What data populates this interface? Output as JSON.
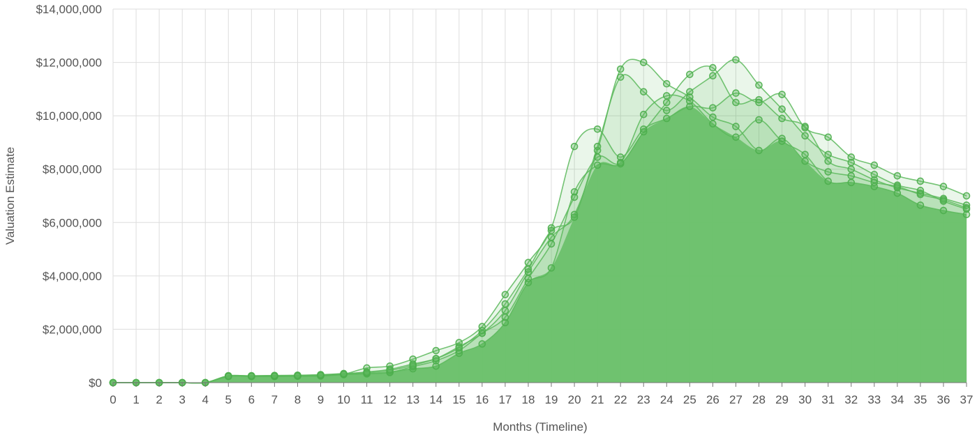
{
  "chart_data": {
    "type": "area",
    "title": "",
    "xlabel": "Months (Timeline)",
    "ylabel": "Valuation Estimate",
    "xlim": [
      0,
      37
    ],
    "ylim": [
      0,
      14000000
    ],
    "x_ticks": [
      "0",
      "1",
      "2",
      "3",
      "4",
      "5",
      "6",
      "7",
      "8",
      "9",
      "10",
      "11",
      "12",
      "13",
      "14",
      "15",
      "16",
      "17",
      "18",
      "19",
      "20",
      "21",
      "22",
      "23",
      "24",
      "25",
      "26",
      "27",
      "28",
      "29",
      "30",
      "31",
      "32",
      "33",
      "34",
      "35",
      "36",
      "37"
    ],
    "y_ticks": [
      {
        "value": 0,
        "label": "$0"
      },
      {
        "value": 2000000,
        "label": "$2,000,000"
      },
      {
        "value": 4000000,
        "label": "$4,000,000"
      },
      {
        "value": 6000000,
        "label": "$6,000,000"
      },
      {
        "value": 8000000,
        "label": "$8,000,000"
      },
      {
        "value": 10000000,
        "label": "$10,000,000"
      },
      {
        "value": 12000000,
        "label": "$12,000,000"
      },
      {
        "value": 14000000,
        "label": "$14,000,000"
      }
    ],
    "grid": true,
    "legend": "none",
    "colors": {
      "line": "#5cb85c",
      "marker": "#4cae4c",
      "fill_main": "#6cc16c",
      "fill_band": "#5cb85c",
      "grid": "#dddddd",
      "text": "#555555"
    },
    "series": [
      {
        "values": [
          0,
          0,
          0,
          0,
          0,
          260000,
          240000,
          230000,
          250000,
          270000,
          320000,
          350000,
          400000,
          520000,
          620000,
          1100000,
          1450000,
          2250000,
          3750000,
          4300000,
          7150000,
          8150000,
          8200000,
          9400000,
          10500000,
          11550000,
          11800000,
          10500000,
          10600000,
          9900000,
          9600000,
          8300000,
          8000000,
          7600000,
          7300000,
          7100000,
          6900000,
          6650000
        ]
      },
      {
        "values": [
          0,
          0,
          0,
          0,
          0,
          230000,
          230000,
          240000,
          240000,
          250000,
          300000,
          330000,
          380000,
          600000,
          820000,
          1200000,
          1850000,
          2450000,
          3900000,
          5200000,
          6950000,
          8450000,
          8250000,
          10050000,
          10750000,
          10550000,
          9700000,
          9200000,
          9850000,
          9050000,
          8550000,
          7550000,
          7500000,
          7350000,
          7100000,
          6650000,
          6450000,
          6300000
        ]
      },
      {
        "values": [
          0,
          0,
          0,
          0,
          0,
          240000,
          250000,
          260000,
          260000,
          290000,
          330000,
          400000,
          500000,
          700000,
          900000,
          1350000,
          1850000,
          2700000,
          4150000,
          5450000,
          6300000,
          8700000,
          11750000,
          12000000,
          11200000,
          10700000,
          9950000,
          9600000,
          8700000,
          9150000,
          8300000,
          7900000,
          7750000,
          7500000,
          7350000,
          7050000,
          6850000,
          6550000
        ]
      },
      {
        "values": [
          0,
          0,
          0,
          0,
          0,
          250000,
          240000,
          250000,
          260000,
          270000,
          320000,
          550000,
          620000,
          880000,
          1200000,
          1500000,
          2100000,
          3300000,
          4500000,
          5800000,
          8850000,
          9500000,
          8450000,
          9500000,
          9900000,
          10350000,
          10300000,
          10850000,
          10500000,
          10800000,
          9550000,
          9200000,
          8450000,
          8150000,
          7750000,
          7550000,
          7350000,
          7000000
        ]
      },
      {
        "values": [
          0,
          0,
          0,
          0,
          0,
          240000,
          260000,
          270000,
          280000,
          300000,
          340000,
          380000,
          460000,
          650000,
          900000,
          1300000,
          1950000,
          2950000,
          4250000,
          5700000,
          6200000,
          8850000,
          11450000,
          10900000,
          10200000,
          10900000,
          11500000,
          12100000,
          11150000,
          10250000,
          9250000,
          8550000,
          8250000,
          7800000,
          7400000,
          7200000,
          6800000,
          6500000
        ]
      }
    ]
  }
}
